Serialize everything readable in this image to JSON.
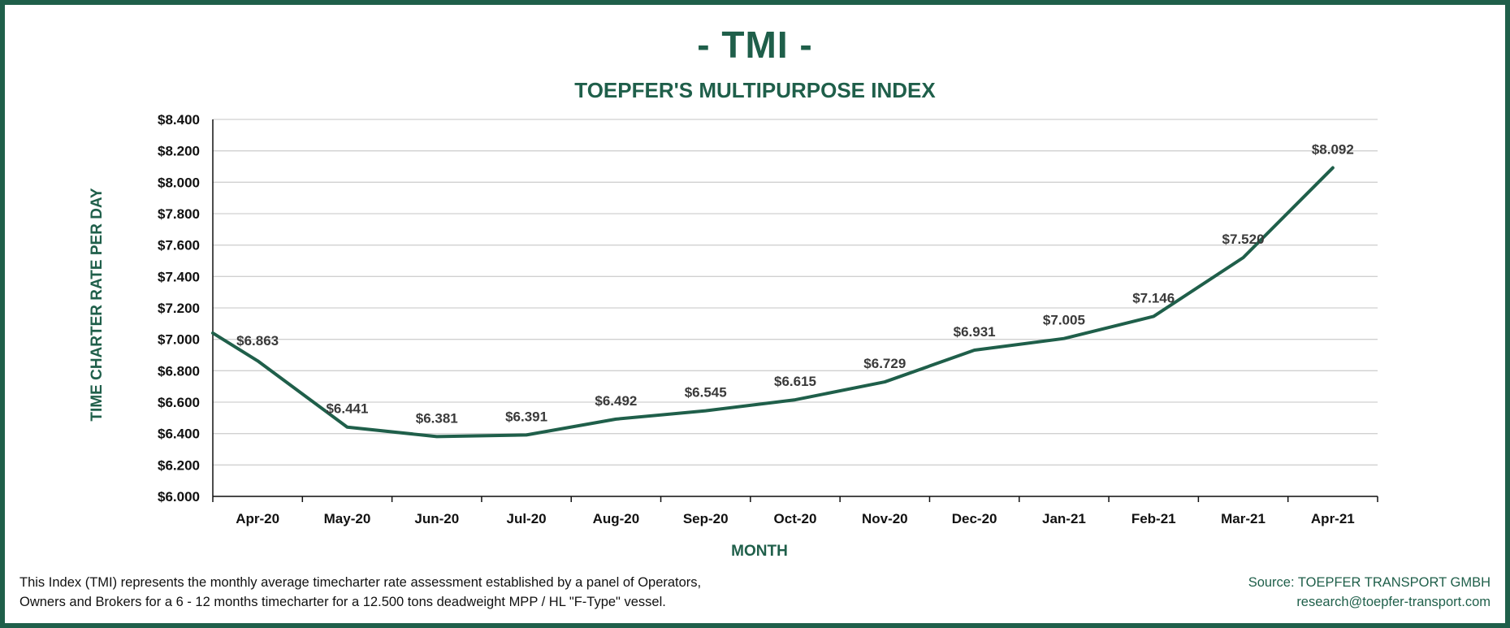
{
  "chart_data": {
    "type": "line",
    "title": "- TMI -",
    "subtitle": "TOEPFER'S MULTIPURPOSE INDEX",
    "xlabel": "MONTH",
    "ylabel": "TIME CHARTER RATE PER DAY",
    "ylim": [
      6000,
      8400
    ],
    "ytick_step": 200,
    "y_tick_labels": [
      "$6.000",
      "$6.200",
      "$6.400",
      "$6.600",
      "$6.800",
      "$7.000",
      "$7.200",
      "$7.400",
      "$7.600",
      "$7.800",
      "$8.000",
      "$8.200",
      "$8.400"
    ],
    "grid": true,
    "legend": "none",
    "line_color": "#1f5f4a",
    "categories": [
      "Apr-20",
      "May-20",
      "Jun-20",
      "Jul-20",
      "Aug-20",
      "Sep-20",
      "Oct-20",
      "Nov-20",
      "Dec-20",
      "Jan-21",
      "Feb-21",
      "Mar-21",
      "Apr-21"
    ],
    "start_value": 7040,
    "values": [
      6863,
      6441,
      6381,
      6391,
      6492,
      6545,
      6615,
      6729,
      6931,
      7005,
      7146,
      7520,
      8092
    ],
    "data_labels": [
      "$6.863",
      "$6.441",
      "$6.381",
      "$6.391",
      "$6.492",
      "$6.545",
      "$6.615",
      "$6.729",
      "$6.931",
      "$7.005",
      "$7.146",
      "$7.520",
      "$8.092"
    ]
  },
  "footnote": {
    "line1": "This Index (TMI) represents the monthly average timecharter rate assessment established by a panel of Operators,",
    "line2": "Owners and Brokers for a 6 - 12 months timecharter for a 12.500 tons deadweight MPP / HL \"F-Type\" vessel."
  },
  "source": {
    "line1": "Source: TOEPFER TRANSPORT GMBH",
    "line2": "research@toepfer-transport.com"
  },
  "colors": {
    "brand": "#1f5f4a",
    "grid": "#d0d0d0",
    "axis": "#111111"
  }
}
